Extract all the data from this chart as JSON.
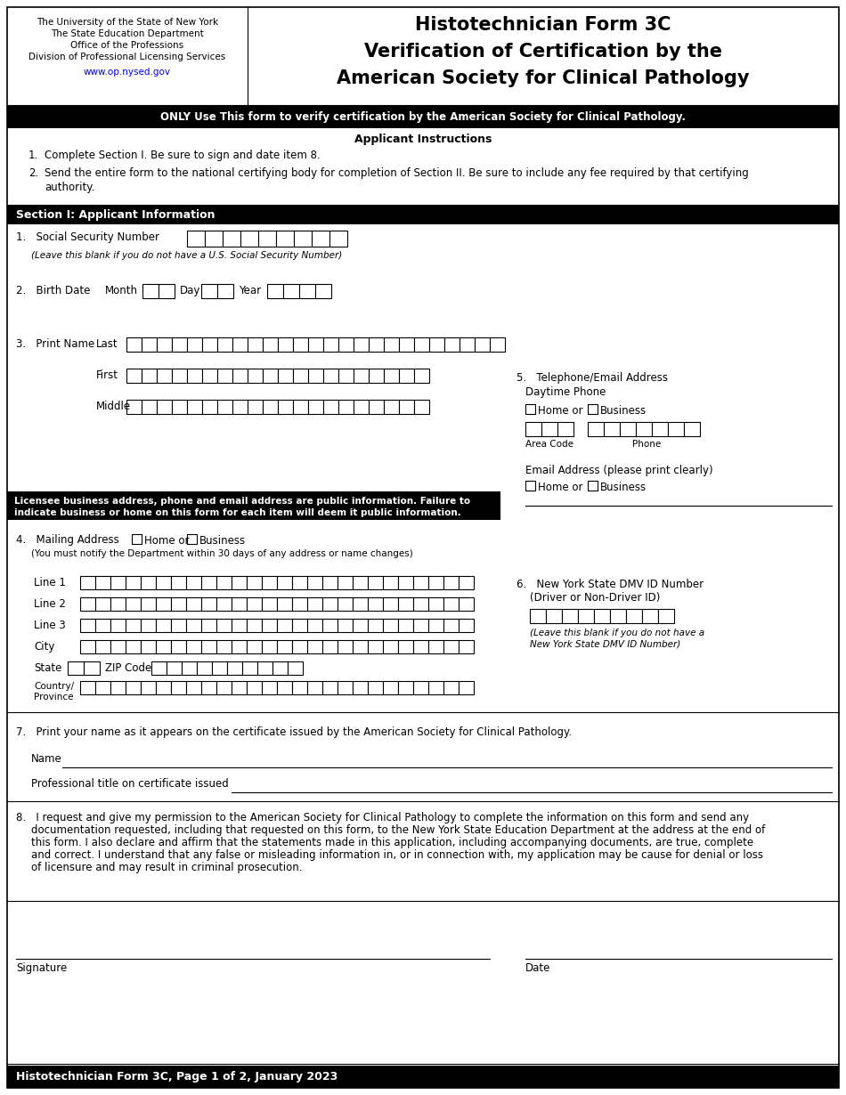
{
  "title_left_lines": [
    "The University of the State of New York",
    "The State Education Department",
    "Office of the Professions",
    "Division of Professional Licensing Services",
    "www.op.nysed.gov"
  ],
  "title_right_lines": [
    "Histotechnician Form 3C",
    "Verification of Certification by the",
    "American Society for Clinical Pathology"
  ],
  "black_banner_text": "ONLY Use This form to verify certification by the American Society for Clinical Pathology.",
  "applicant_instructions_title": "Applicant Instructions",
  "instructions": [
    "Complete Section I. Be sure to sign and date item 8.",
    "Send the entire form to the national certifying body for completion of Section II. Be sure to include any fee required by that certifying\nauthority."
  ],
  "section1_title": "Section I: Applicant Information",
  "footer_text": "Histotechnician Form 3C, Page 1 of 2, January 2023",
  "bg_color": "#ffffff",
  "black_color": "#000000",
  "url_color": "#0000ff"
}
